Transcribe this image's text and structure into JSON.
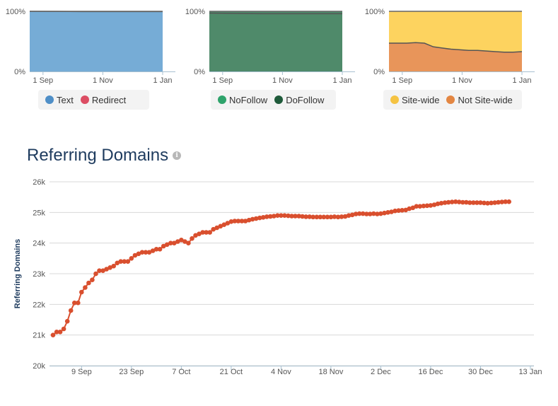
{
  "mini_charts": [
    {
      "id": "link-type",
      "type": "area",
      "ytick_labels": [
        "100%",
        "0%"
      ],
      "xtick_labels": [
        "1 Sep",
        "1 Nov",
        "1 Jan"
      ],
      "series": [
        {
          "name": "Text",
          "color": "#76acd6",
          "values": [
            100,
            99.8,
            99.6,
            99.6,
            99.5,
            99.5
          ]
        },
        {
          "name": "Redirect",
          "color": "#e0566f",
          "values": [
            0,
            0.2,
            0.4,
            0.4,
            0.5,
            0.5
          ]
        }
      ],
      "legend": [
        {
          "label": "Text",
          "color": "#4f8fc7",
          "name": "legend-text"
        },
        {
          "label": "Redirect",
          "color": "#dc4d63",
          "name": "legend-redirect"
        }
      ]
    },
    {
      "id": "follow-type",
      "type": "area",
      "ytick_labels": [
        "100%",
        "0%"
      ],
      "xtick_labels": [
        "1 Sep",
        "1 Nov",
        "1 Jan"
      ],
      "series": [
        {
          "name": "DoFollow",
          "color": "#4f8a6a",
          "values": [
            97,
            96.5,
            96,
            96,
            96,
            96
          ]
        },
        {
          "name": "NoFollow",
          "color": "#4c8b6a",
          "values": [
            3,
            3.5,
            4,
            4,
            4,
            4
          ]
        }
      ],
      "legend": [
        {
          "label": "NoFollow",
          "color": "#2ea36b",
          "name": "legend-nofollow"
        },
        {
          "label": "DoFollow",
          "color": "#1e5a3a",
          "name": "legend-dofollow"
        }
      ]
    },
    {
      "id": "sitewide",
      "type": "area",
      "ytick_labels": [
        "100%",
        "0%"
      ],
      "xtick_labels": [
        "1 Sep",
        "1 Nov",
        "1 Jan"
      ],
      "series": [
        {
          "name": "Not Site-wide",
          "color": "#e8955a",
          "values": [
            47,
            47,
            47,
            48,
            47,
            41,
            39,
            37,
            36,
            35,
            35,
            34,
            33,
            32,
            32,
            33
          ]
        },
        {
          "name": "Site-wide",
          "color": "#fdd35f",
          "values": [
            53,
            53,
            53,
            52,
            53,
            59,
            61,
            63,
            64,
            65,
            65,
            66,
            67,
            68,
            68,
            67
          ]
        }
      ],
      "legend": [
        {
          "label": "Site-wide",
          "color": "#f5c342",
          "name": "legend-sitewide"
        },
        {
          "label": "Not Site-wide",
          "color": "#e38642",
          "name": "legend-not-sitewide"
        }
      ]
    }
  ],
  "chart_data": {
    "type": "line",
    "title": "Referring Domains",
    "ylabel": "Referring Domains",
    "ylim": [
      20000,
      26000
    ],
    "yticks": [
      20000,
      21000,
      22000,
      23000,
      24000,
      25000,
      26000
    ],
    "ytick_labels": [
      "20k",
      "21k",
      "22k",
      "23k",
      "24k",
      "25k",
      "26k"
    ],
    "xlim": [
      "2017-08-31",
      "2018-01-14"
    ],
    "xticks": [
      "2017-09-09",
      "2017-09-23",
      "2017-10-07",
      "2017-10-21",
      "2017-11-04",
      "2017-11-18",
      "2017-12-02",
      "2017-12-16",
      "2017-12-30",
      "2018-01-13"
    ],
    "xtick_labels": [
      "9 Sep",
      "23 Sep",
      "7 Oct",
      "21 Oct",
      "4 Nov",
      "18 Nov",
      "2 Dec",
      "16 Dec",
      "30 Dec",
      "13 Jan"
    ],
    "line_color": "#d94f2e",
    "grid": true,
    "series": [
      {
        "values": [
          [
            "2017-09-01",
            21000
          ],
          [
            "2017-09-02",
            21100
          ],
          [
            "2017-09-03",
            21100
          ],
          [
            "2017-09-04",
            21200
          ],
          [
            "2017-09-05",
            21450
          ],
          [
            "2017-09-06",
            21800
          ],
          [
            "2017-09-07",
            22050
          ],
          [
            "2017-09-08",
            22050
          ],
          [
            "2017-09-09",
            22400
          ],
          [
            "2017-09-10",
            22550
          ],
          [
            "2017-09-11",
            22700
          ],
          [
            "2017-09-12",
            22800
          ],
          [
            "2017-09-13",
            23000
          ],
          [
            "2017-09-14",
            23100
          ],
          [
            "2017-09-15",
            23100
          ],
          [
            "2017-09-16",
            23150
          ],
          [
            "2017-09-17",
            23200
          ],
          [
            "2017-09-18",
            23250
          ],
          [
            "2017-09-19",
            23350
          ],
          [
            "2017-09-20",
            23400
          ],
          [
            "2017-09-21",
            23400
          ],
          [
            "2017-09-22",
            23400
          ],
          [
            "2017-09-23",
            23500
          ],
          [
            "2017-09-24",
            23600
          ],
          [
            "2017-09-25",
            23650
          ],
          [
            "2017-09-26",
            23700
          ],
          [
            "2017-09-27",
            23700
          ],
          [
            "2017-09-28",
            23700
          ],
          [
            "2017-09-29",
            23750
          ],
          [
            "2017-09-30",
            23800
          ],
          [
            "2017-10-01",
            23800
          ],
          [
            "2017-10-02",
            23900
          ],
          [
            "2017-10-03",
            23950
          ],
          [
            "2017-10-04",
            24000
          ],
          [
            "2017-10-05",
            24000
          ],
          [
            "2017-10-06",
            24050
          ],
          [
            "2017-10-07",
            24100
          ],
          [
            "2017-10-08",
            24050
          ],
          [
            "2017-10-09",
            24000
          ],
          [
            "2017-10-10",
            24150
          ],
          [
            "2017-10-11",
            24250
          ],
          [
            "2017-10-12",
            24300
          ],
          [
            "2017-10-13",
            24350
          ],
          [
            "2017-10-14",
            24350
          ],
          [
            "2017-10-15",
            24350
          ],
          [
            "2017-10-16",
            24450
          ],
          [
            "2017-10-17",
            24500
          ],
          [
            "2017-10-18",
            24550
          ],
          [
            "2017-10-19",
            24600
          ],
          [
            "2017-10-20",
            24650
          ],
          [
            "2017-10-21",
            24700
          ],
          [
            "2017-10-22",
            24720
          ],
          [
            "2017-10-23",
            24720
          ],
          [
            "2017-10-24",
            24720
          ],
          [
            "2017-10-25",
            24720
          ],
          [
            "2017-10-26",
            24750
          ],
          [
            "2017-10-27",
            24780
          ],
          [
            "2017-10-28",
            24800
          ],
          [
            "2017-10-29",
            24820
          ],
          [
            "2017-10-30",
            24840
          ],
          [
            "2017-10-31",
            24860
          ],
          [
            "2017-11-01",
            24870
          ],
          [
            "2017-11-02",
            24880
          ],
          [
            "2017-11-03",
            24900
          ],
          [
            "2017-11-04",
            24900
          ],
          [
            "2017-11-05",
            24900
          ],
          [
            "2017-11-06",
            24890
          ],
          [
            "2017-11-07",
            24880
          ],
          [
            "2017-11-08",
            24880
          ],
          [
            "2017-11-09",
            24880
          ],
          [
            "2017-11-10",
            24870
          ],
          [
            "2017-11-11",
            24860
          ],
          [
            "2017-11-12",
            24860
          ],
          [
            "2017-11-13",
            24850
          ],
          [
            "2017-11-14",
            24850
          ],
          [
            "2017-11-15",
            24850
          ],
          [
            "2017-11-16",
            24850
          ],
          [
            "2017-11-17",
            24850
          ],
          [
            "2017-11-18",
            24850
          ],
          [
            "2017-11-19",
            24860
          ],
          [
            "2017-11-20",
            24850
          ],
          [
            "2017-11-21",
            24860
          ],
          [
            "2017-11-22",
            24870
          ],
          [
            "2017-11-23",
            24900
          ],
          [
            "2017-11-24",
            24920
          ],
          [
            "2017-11-25",
            24950
          ],
          [
            "2017-11-26",
            24960
          ],
          [
            "2017-11-27",
            24960
          ],
          [
            "2017-11-28",
            24950
          ],
          [
            "2017-11-29",
            24950
          ],
          [
            "2017-11-30",
            24960
          ],
          [
            "2017-12-01",
            24950
          ],
          [
            "2017-12-02",
            24960
          ],
          [
            "2017-12-03",
            24980
          ],
          [
            "2017-12-04",
            25000
          ],
          [
            "2017-12-05",
            25020
          ],
          [
            "2017-12-06",
            25050
          ],
          [
            "2017-12-07",
            25060
          ],
          [
            "2017-12-08",
            25070
          ],
          [
            "2017-12-09",
            25080
          ],
          [
            "2017-12-10",
            25120
          ],
          [
            "2017-12-11",
            25150
          ],
          [
            "2017-12-12",
            25200
          ],
          [
            "2017-12-13",
            25200
          ],
          [
            "2017-12-14",
            25210
          ],
          [
            "2017-12-15",
            25220
          ],
          [
            "2017-12-16",
            25230
          ],
          [
            "2017-12-17",
            25250
          ],
          [
            "2017-12-18",
            25280
          ],
          [
            "2017-12-19",
            25300
          ],
          [
            "2017-12-20",
            25320
          ],
          [
            "2017-12-21",
            25330
          ],
          [
            "2017-12-22",
            25340
          ],
          [
            "2017-12-23",
            25350
          ],
          [
            "2017-12-24",
            25340
          ],
          [
            "2017-12-25",
            25330
          ],
          [
            "2017-12-26",
            25330
          ],
          [
            "2017-12-27",
            25320
          ],
          [
            "2017-12-28",
            25320
          ],
          [
            "2017-12-29",
            25320
          ],
          [
            "2017-12-30",
            25320
          ],
          [
            "2017-12-31",
            25310
          ],
          [
            "2018-01-01",
            25300
          ],
          [
            "2018-01-02",
            25310
          ],
          [
            "2018-01-03",
            25320
          ],
          [
            "2018-01-04",
            25330
          ],
          [
            "2018-01-05",
            25340
          ],
          [
            "2018-01-06",
            25350
          ],
          [
            "2018-01-07",
            25350
          ]
        ]
      }
    ]
  }
}
